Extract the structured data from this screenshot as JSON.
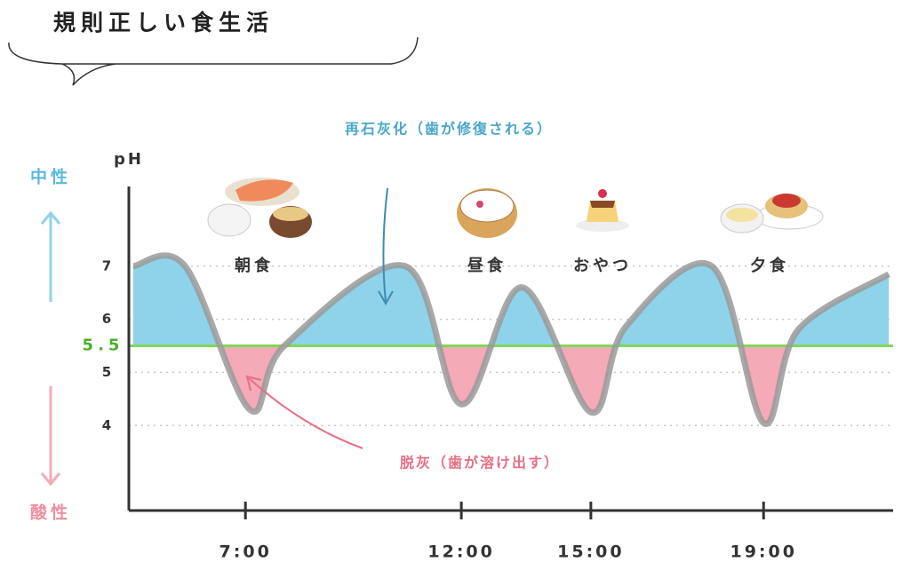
{
  "chart_data": {
    "type": "line",
    "title": "規則正しい食生活",
    "y_label": "pH",
    "neutral_label": "中性",
    "acidic_label": "酸性",
    "meals": [
      "朝食",
      "昼食",
      "おやつ",
      "夕食"
    ],
    "remineralization_note": "再石灰化（歯が修復される）",
    "demineralization_note": "脱灰（歯が溶け出す）",
    "x": [
      4.4,
      5.6,
      7.1,
      7.9,
      10.7,
      12.0,
      13.4,
      15.0,
      15.8,
      17.8,
      19.0,
      19.8,
      21.9
    ],
    "values": [
      7.0,
      7.0,
      4.3,
      5.5,
      7.0,
      4.4,
      6.6,
      4.25,
      5.85,
      7.0,
      4.05,
      5.8,
      6.85
    ],
    "xlim": [
      4.3,
      22.0
    ],
    "xticks": [
      {
        "value": 7,
        "label": "7:00"
      },
      {
        "value": 12,
        "label": "12:00"
      },
      {
        "value": 15,
        "label": "15:00"
      },
      {
        "value": 19,
        "label": "19:00"
      }
    ],
    "ylim": [
      2.4,
      8.5
    ],
    "yticks": [
      4,
      5,
      6,
      7
    ],
    "threshold": 5.5,
    "threshold_color": "#7ed957",
    "above_color": "#8fd3ea",
    "below_color": "#f5aab8",
    "line_color": "#9a9a9a",
    "grid": true
  }
}
